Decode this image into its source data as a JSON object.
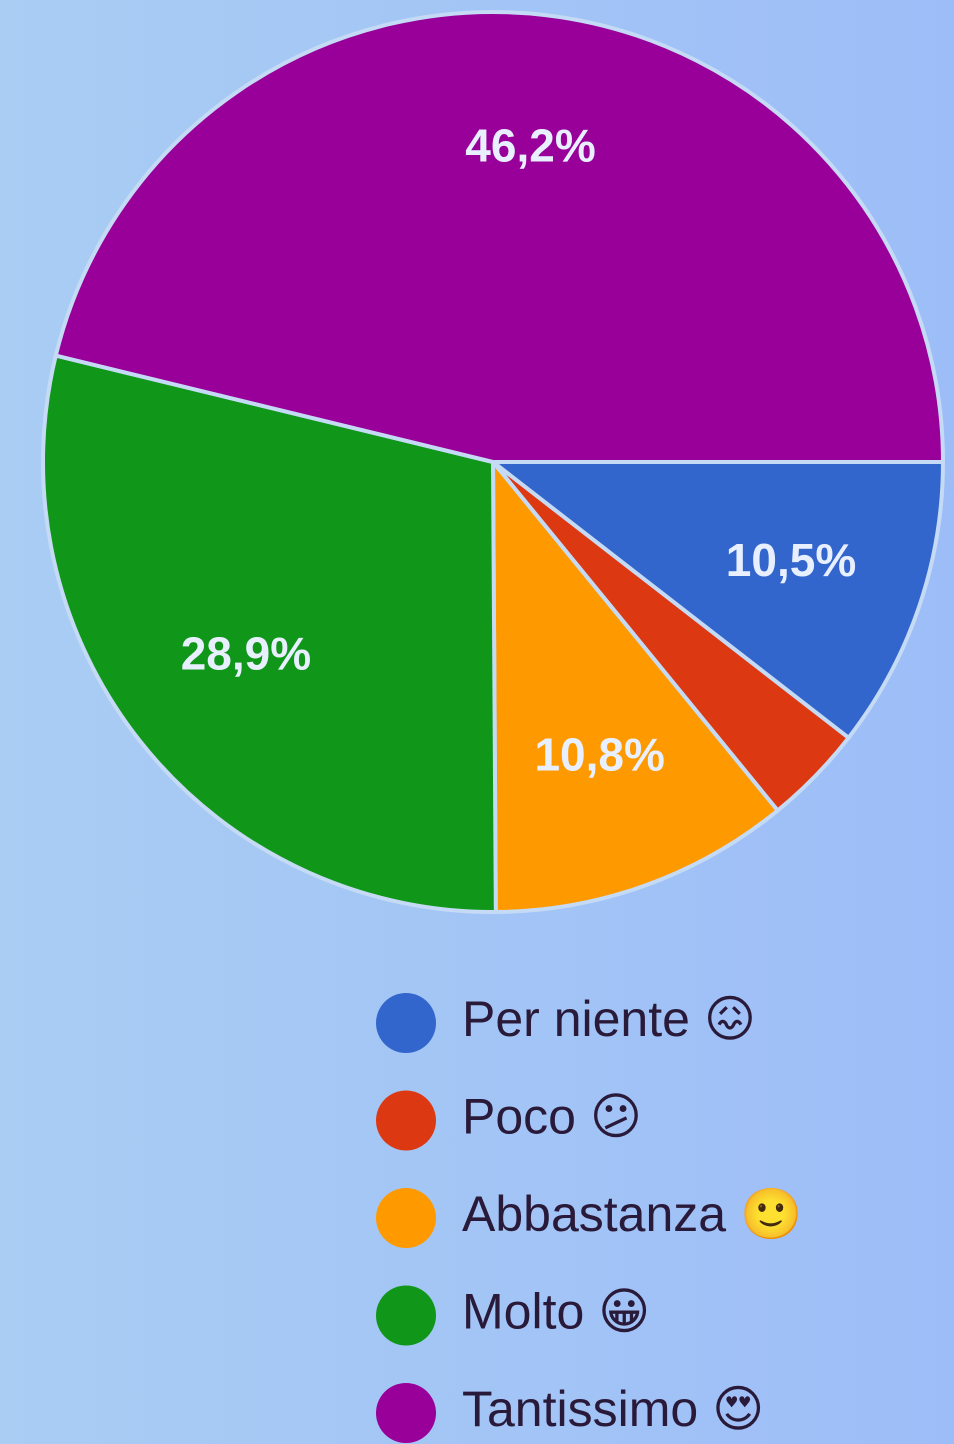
{
  "chart_data": {
    "type": "pie",
    "categories": [
      "Per niente 😖",
      "Poco 😕",
      "Abbastanza 🙂",
      "Molto 😀",
      "Tantissimo 😍"
    ],
    "values": [
      10.5,
      3.6,
      10.8,
      28.9,
      46.2
    ],
    "value_labels": [
      "10,5%",
      null,
      "10,8%",
      "28,9%",
      "46,2%"
    ],
    "colors": [
      "#3366cc",
      "#dc3912",
      "#ff9900",
      "#109618",
      "#990099"
    ],
    "legend": "bottom"
  }
}
